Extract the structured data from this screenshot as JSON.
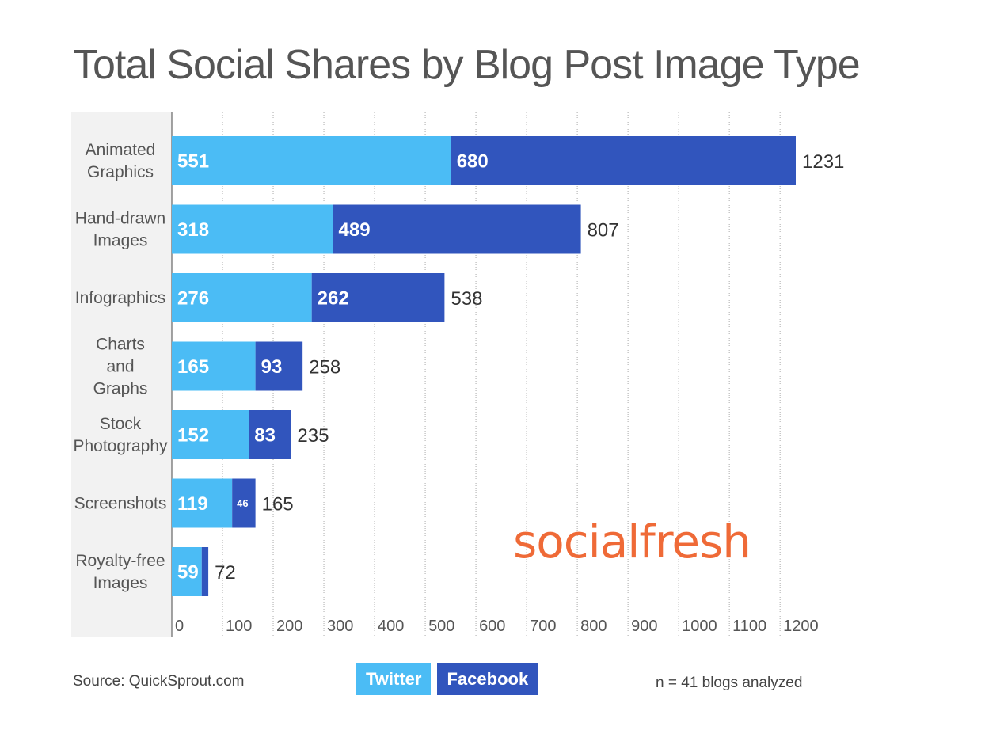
{
  "chart_data": {
    "type": "bar",
    "orientation": "horizontal",
    "stacked": true,
    "title": "Total Social Shares by Blog Post Image Type",
    "categories": [
      [
        "Animated",
        "Graphics"
      ],
      [
        "Hand-drawn",
        "Images"
      ],
      [
        "Infographics"
      ],
      [
        "Charts",
        "and",
        "Graphs"
      ],
      [
        "Stock",
        "Photography"
      ],
      [
        "Screenshots"
      ],
      [
        "Royalty-free",
        "Images"
      ]
    ],
    "series": [
      {
        "name": "Twitter",
        "color": "#4bbcf5",
        "values": [
          551,
          318,
          276,
          165,
          152,
          119,
          59
        ]
      },
      {
        "name": "Facebook",
        "color": "#3155bd",
        "values": [
          680,
          489,
          262,
          93,
          83,
          46,
          13
        ]
      }
    ],
    "segment_labels": [
      [
        "551",
        "318",
        "276",
        "165",
        "152",
        "119",
        "59"
      ],
      [
        "680",
        "489",
        "262",
        "93",
        "83",
        "46",
        ""
      ]
    ],
    "totals": [
      1231,
      807,
      538,
      258,
      235,
      165,
      72
    ],
    "xticks": [
      0,
      100,
      200,
      300,
      400,
      500,
      600,
      700,
      800,
      900,
      1000,
      1100,
      1200
    ],
    "xlim": [
      0,
      1200
    ],
    "grid": "vertical-dotted",
    "legend": "bottom-center"
  },
  "source_note": "Source: QuickSprout.com",
  "sample_note": "n = 41 blogs analyzed",
  "brand_logo": "socialfresh",
  "colors": {
    "twitter": "#4bbcf5",
    "facebook": "#3155bd",
    "brand": "#ef6a37"
  }
}
